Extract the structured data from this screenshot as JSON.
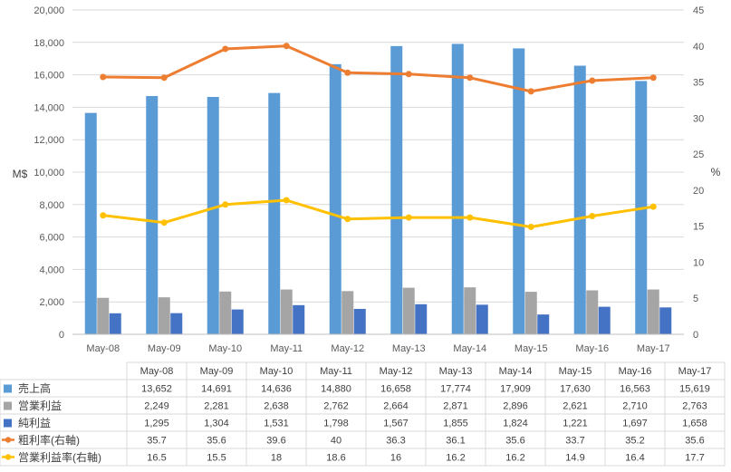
{
  "chart_data": {
    "type": "bar",
    "categories": [
      "May-08",
      "May-09",
      "May-10",
      "May-11",
      "May-12",
      "May-13",
      "May-14",
      "May-15",
      "May-16",
      "May-17"
    ],
    "series": [
      {
        "name": "売上高",
        "kind": "bar",
        "axis": "left",
        "color": "#5b9bd5",
        "values": [
          13652,
          14691,
          14636,
          14880,
          16658,
          17774,
          17909,
          17630,
          16563,
          15619
        ],
        "labels": [
          "13,652",
          "14,691",
          "14,636",
          "14,880",
          "16,658",
          "17,774",
          "17,909",
          "17,630",
          "16,563",
          "15,619"
        ]
      },
      {
        "name": "営業利益",
        "kind": "bar",
        "axis": "left",
        "color": "#a5a5a5",
        "values": [
          2249,
          2281,
          2638,
          2762,
          2664,
          2871,
          2896,
          2621,
          2710,
          2763
        ],
        "labels": [
          "2,249",
          "2,281",
          "2,638",
          "2,762",
          "2,664",
          "2,871",
          "2,896",
          "2,621",
          "2,710",
          "2,763"
        ]
      },
      {
        "name": "純利益",
        "kind": "bar",
        "axis": "left",
        "color": "#4472c4",
        "values": [
          1295,
          1304,
          1531,
          1798,
          1567,
          1855,
          1824,
          1221,
          1697,
          1658
        ],
        "labels": [
          "1,295",
          "1,304",
          "1,531",
          "1,798",
          "1,567",
          "1,855",
          "1,824",
          "1,221",
          "1,697",
          "1,658"
        ]
      },
      {
        "name": "粗利率(右軸)",
        "kind": "line",
        "axis": "right",
        "color": "#ed7d31",
        "values": [
          35.7,
          35.6,
          39.6,
          40,
          36.3,
          36.1,
          35.6,
          33.7,
          35.2,
          35.6
        ],
        "labels": [
          "35.7",
          "35.6",
          "39.6",
          "40",
          "36.3",
          "36.1",
          "35.6",
          "33.7",
          "35.2",
          "35.6"
        ]
      },
      {
        "name": "営業利益率(右軸)",
        "kind": "line",
        "axis": "right",
        "color": "#ffc000",
        "values": [
          16.5,
          15.5,
          18,
          18.6,
          16,
          16.2,
          16.2,
          14.9,
          16.4,
          17.7
        ],
        "labels": [
          "16.5",
          "15.5",
          "18",
          "18.6",
          "16",
          "16.2",
          "16.2",
          "14.9",
          "16.4",
          "17.7"
        ]
      }
    ],
    "ylabel": "M$",
    "ylabel_right": "%",
    "ylim": [
      0,
      20000
    ],
    "ylim_right": [
      0,
      45
    ],
    "yticks": [
      "0",
      "2,000",
      "4,000",
      "6,000",
      "8,000",
      "10,000",
      "12,000",
      "14,000",
      "16,000",
      "18,000",
      "20,000"
    ],
    "yticks_right": [
      "0",
      "5",
      "10",
      "15",
      "20",
      "25",
      "30",
      "35",
      "40",
      "45"
    ],
    "grid": true,
    "legend": "data-table-below"
  }
}
